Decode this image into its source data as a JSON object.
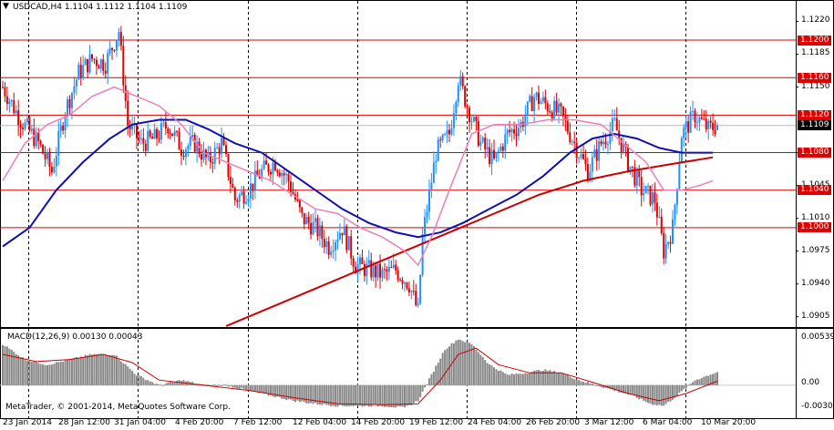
{
  "chart": {
    "title": "USDCAD,H4  1.1104 1.1112 1.1104 1.1109",
    "macd_title": "MACD(12,26,9) 0.00130 0.00043",
    "copyright": "MetaTrader, © 2001-2014, MetaQuotes Software Corp.",
    "menu_icon": "triangle-down-icon"
  },
  "colors": {
    "bull": "#1e90ff",
    "bear": "#e00000",
    "level_line": "#dd0000",
    "sma_pink": "#ee7fb7",
    "sma_blue": "#1010b0",
    "sma_red": "#cc0000",
    "macd_hist": "#888888",
    "macd_signal": "#cc0000",
    "grid": "#000000",
    "current_badge": "#000000"
  },
  "price_axis": {
    "ticks": [
      "1.1220",
      "1.1185",
      "1.1150",
      "1.1080",
      "1.1045",
      "1.1010",
      "1.0975",
      "1.0940",
      "1.0905"
    ],
    "badges": [
      {
        "label": "1.1200",
        "kind": "level"
      },
      {
        "label": "1.1160",
        "kind": "level"
      },
      {
        "label": "1.1120",
        "kind": "level"
      },
      {
        "label": "1.1109",
        "kind": "current"
      },
      {
        "label": "1.1080",
        "kind": "level"
      },
      {
        "label": "1.1040",
        "kind": "level"
      },
      {
        "label": "1.1000",
        "kind": "level"
      }
    ]
  },
  "macd_axis": {
    "ticks": [
      "0.00539",
      "0.00",
      "-0.00302"
    ]
  },
  "time_axis": {
    "labels": [
      "23 Jan 2014",
      "28 Jan 12:00",
      "31 Jan 04:00",
      "4 Feb 20:00",
      "7 Feb 12:00",
      "12 Feb 04:00",
      "14 Feb 20:00",
      "19 Feb 12:00",
      "24 Feb 04:00",
      "26 Feb 20:00",
      "3 Mar 12:00",
      "6 Mar 04:00",
      "10 Mar 20:00"
    ]
  },
  "chart_data": {
    "type": "candlestick",
    "symbol": "USDCAD",
    "timeframe": "H4",
    "ohlc_last": {
      "open": 1.1104,
      "high": 1.1112,
      "low": 1.1104,
      "close": 1.1109
    },
    "ylim": [
      1.0895,
      1.1235
    ],
    "horizontal_levels": [
      1.12,
      1.116,
      1.112,
      1.108,
      1.104,
      1.1
    ],
    "current_price": 1.1109,
    "close_path": [
      [
        0,
        1.115
      ],
      [
        8,
        1.1115
      ],
      [
        16,
        1.109
      ],
      [
        22,
        1.106
      ],
      [
        28,
        1.1125
      ],
      [
        34,
        1.1165
      ],
      [
        40,
        1.118
      ],
      [
        46,
        1.1175
      ],
      [
        52,
        1.121
      ],
      [
        56,
        1.111
      ],
      [
        62,
        1.109
      ],
      [
        68,
        1.1095
      ],
      [
        74,
        1.111
      ],
      [
        80,
        1.1085
      ],
      [
        86,
        1.109
      ],
      [
        92,
        1.107
      ],
      [
        98,
        1.109
      ],
      [
        104,
        1.103
      ],
      [
        110,
        1.104
      ],
      [
        116,
        1.106
      ],
      [
        122,
        1.107
      ],
      [
        128,
        1.105
      ],
      [
        134,
        1.101
      ],
      [
        140,
        1.1
      ],
      [
        146,
        1.098
      ],
      [
        152,
        1.1
      ],
      [
        158,
        1.096
      ],
      [
        164,
        1.0955
      ],
      [
        170,
        1.095
      ],
      [
        176,
        1.0955
      ],
      [
        182,
        1.094
      ],
      [
        186,
        1.091
      ],
      [
        188,
        1.099
      ],
      [
        194,
        1.108
      ],
      [
        200,
        1.11
      ],
      [
        204,
        1.116
      ],
      [
        208,
        1.113
      ],
      [
        214,
        1.109
      ],
      [
        220,
        1.107
      ],
      [
        226,
        1.11
      ],
      [
        232,
        1.111
      ],
      [
        238,
        1.114
      ],
      [
        244,
        1.113
      ],
      [
        250,
        1.112
      ],
      [
        256,
        1.109
      ],
      [
        262,
        1.106
      ],
      [
        268,
        1.109
      ],
      [
        274,
        1.111
      ],
      [
        280,
        1.107
      ],
      [
        286,
        1.104
      ],
      [
        292,
        1.103
      ],
      [
        296,
        1.0975
      ],
      [
        300,
        1.1
      ],
      [
        304,
        1.11
      ],
      [
        310,
        1.112
      ],
      [
        316,
        1.1105
      ],
      [
        320,
        1.1109
      ]
    ],
    "sma_pink": [
      [
        0,
        1.105
      ],
      [
        10,
        1.109
      ],
      [
        20,
        1.111
      ],
      [
        30,
        1.112
      ],
      [
        40,
        1.114
      ],
      [
        50,
        1.115
      ],
      [
        60,
        1.114
      ],
      [
        70,
        1.113
      ],
      [
        80,
        1.111
      ],
      [
        90,
        1.108
      ],
      [
        100,
        1.107
      ],
      [
        110,
        1.106
      ],
      [
        120,
        1.105
      ],
      [
        130,
        1.1035
      ],
      [
        140,
        1.102
      ],
      [
        150,
        1.1015
      ],
      [
        160,
        1.1
      ],
      [
        170,
        1.099
      ],
      [
        180,
        1.0975
      ],
      [
        186,
        1.096
      ],
      [
        192,
        1.099
      ],
      [
        200,
        1.104
      ],
      [
        210,
        1.11
      ],
      [
        220,
        1.111
      ],
      [
        232,
        1.111
      ],
      [
        244,
        1.1115
      ],
      [
        256,
        1.1115
      ],
      [
        268,
        1.111
      ],
      [
        278,
        1.109
      ],
      [
        288,
        1.107
      ],
      [
        296,
        1.104
      ],
      [
        304,
        1.104
      ],
      [
        312,
        1.1045
      ],
      [
        318,
        1.105
      ]
    ],
    "sma_blue": [
      [
        0,
        1.098
      ],
      [
        12,
        1.1
      ],
      [
        24,
        1.104
      ],
      [
        36,
        1.107
      ],
      [
        48,
        1.1095
      ],
      [
        58,
        1.111
      ],
      [
        70,
        1.1115
      ],
      [
        82,
        1.1115
      ],
      [
        92,
        1.1105
      ],
      [
        104,
        1.109
      ],
      [
        116,
        1.108
      ],
      [
        128,
        1.106
      ],
      [
        140,
        1.104
      ],
      [
        152,
        1.102
      ],
      [
        164,
        1.1005
      ],
      [
        176,
        1.0995
      ],
      [
        186,
        1.099
      ],
      [
        196,
        1.0995
      ],
      [
        206,
        1.1005
      ],
      [
        218,
        1.102
      ],
      [
        230,
        1.1035
      ],
      [
        242,
        1.1055
      ],
      [
        254,
        1.108
      ],
      [
        264,
        1.1095
      ],
      [
        274,
        1.11
      ],
      [
        284,
        1.1095
      ],
      [
        294,
        1.1085
      ],
      [
        304,
        1.108
      ],
      [
        312,
        1.108
      ],
      [
        318,
        1.108
      ]
    ],
    "sma_red": [
      [
        100,
        1.0895
      ],
      [
        120,
        1.0915
      ],
      [
        140,
        1.0935
      ],
      [
        160,
        1.0955
      ],
      [
        180,
        1.0975
      ],
      [
        200,
        1.0995
      ],
      [
        220,
        1.1015
      ],
      [
        240,
        1.1035
      ],
      [
        260,
        1.105
      ],
      [
        280,
        1.106
      ],
      [
        300,
        1.1068
      ],
      [
        318,
        1.1075
      ]
    ],
    "macd": {
      "ylim": [
        -0.00302,
        0.00539
      ],
      "hist_path": [
        [
          0,
          0.004
        ],
        [
          10,
          0.0025
        ],
        [
          20,
          0.002
        ],
        [
          30,
          0.0025
        ],
        [
          40,
          0.003
        ],
        [
          50,
          0.003
        ],
        [
          60,
          0.001
        ],
        [
          70,
          0.0
        ],
        [
          80,
          0.0005
        ],
        [
          90,
          0.0
        ],
        [
          100,
          0.0
        ],
        [
          110,
          -0.0005
        ],
        [
          120,
          -0.001
        ],
        [
          130,
          -0.0015
        ],
        [
          140,
          -0.0018
        ],
        [
          150,
          -0.002
        ],
        [
          160,
          -0.002
        ],
        [
          170,
          -0.002
        ],
        [
          180,
          -0.0022
        ],
        [
          186,
          -0.0015
        ],
        [
          192,
          0.001
        ],
        [
          198,
          0.0035
        ],
        [
          204,
          0.0045
        ],
        [
          210,
          0.004
        ],
        [
          218,
          0.002
        ],
        [
          226,
          0.001
        ],
        [
          234,
          0.0012
        ],
        [
          242,
          0.0015
        ],
        [
          250,
          0.0012
        ],
        [
          258,
          0.0005
        ],
        [
          266,
          0.0
        ],
        [
          274,
          -0.0005
        ],
        [
          282,
          -0.001
        ],
        [
          290,
          -0.0018
        ],
        [
          296,
          -0.002
        ],
        [
          302,
          -0.001
        ],
        [
          310,
          0.0005
        ],
        [
          320,
          0.0013
        ]
      ],
      "signal_path": [
        [
          0,
          0.003
        ],
        [
          15,
          0.0023
        ],
        [
          30,
          0.0025
        ],
        [
          45,
          0.003
        ],
        [
          58,
          0.0022
        ],
        [
          70,
          0.0005
        ],
        [
          90,
          0.0
        ],
        [
          110,
          -0.0005
        ],
        [
          130,
          -0.0012
        ],
        [
          150,
          -0.0018
        ],
        [
          170,
          -0.0019
        ],
        [
          186,
          -0.0018
        ],
        [
          196,
          0.0005
        ],
        [
          204,
          0.003
        ],
        [
          212,
          0.0036
        ],
        [
          222,
          0.002
        ],
        [
          236,
          0.0012
        ],
        [
          250,
          0.0012
        ],
        [
          264,
          0.0003
        ],
        [
          280,
          -0.0008
        ],
        [
          294,
          -0.0015
        ],
        [
          306,
          -0.0008
        ],
        [
          320,
          0.0004
        ]
      ]
    }
  }
}
